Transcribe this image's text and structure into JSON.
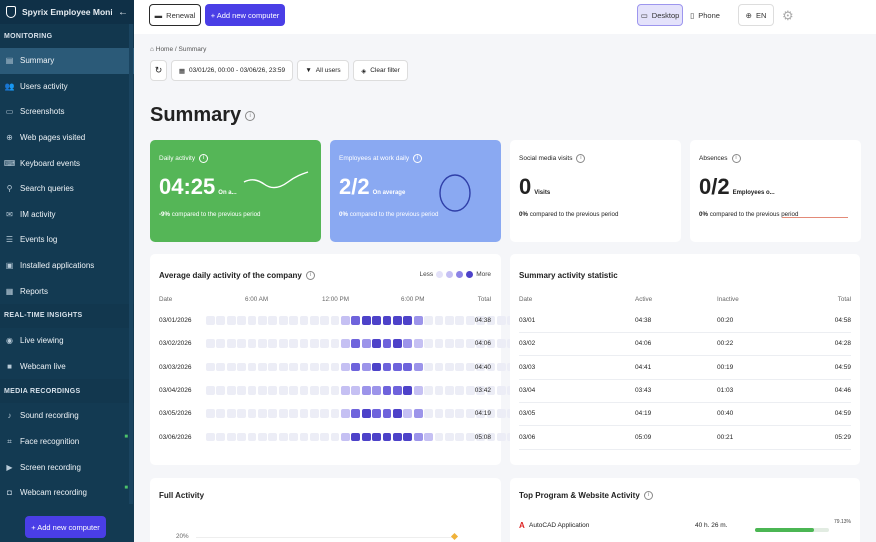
{
  "sidebar": {
    "app_title": "Spyrix Employee Monitori...",
    "sections": [
      {
        "title": "MONITORING",
        "items": [
          {
            "label": "Summary",
            "icon": "summary-icon",
            "glyph": "▤",
            "active": true
          },
          {
            "label": "Users activity",
            "icon": "users-icon",
            "glyph": "👥"
          },
          {
            "label": "Screenshots",
            "icon": "monitor-icon",
            "glyph": "▭"
          },
          {
            "label": "Web pages visited",
            "icon": "globe-icon",
            "glyph": "⊕"
          },
          {
            "label": "Keyboard events",
            "icon": "keyboard-icon",
            "glyph": "⌨"
          },
          {
            "label": "Search queries",
            "icon": "search-icon",
            "glyph": "⚲"
          },
          {
            "label": "IM activity",
            "icon": "chat-icon",
            "glyph": "✉"
          },
          {
            "label": "Events log",
            "icon": "list-icon",
            "glyph": "☰"
          },
          {
            "label": "Installed applications",
            "icon": "apps-icon",
            "glyph": "▣"
          },
          {
            "label": "Reports",
            "icon": "reports-icon",
            "glyph": "▦"
          }
        ]
      },
      {
        "title": "REAL-TIME INSIGHTS",
        "items": [
          {
            "label": "Live viewing",
            "icon": "eye-icon",
            "glyph": "◉"
          },
          {
            "label": "Webcam live",
            "icon": "camera-icon",
            "glyph": "■"
          }
        ]
      },
      {
        "title": "MEDIA RECORDINGS",
        "items": [
          {
            "label": "Sound recording",
            "icon": "microphone-icon",
            "glyph": "♪"
          },
          {
            "label": "Face recognition",
            "icon": "face-scan-icon",
            "glyph": "⌗",
            "locked": true
          },
          {
            "label": "Screen recording",
            "icon": "screen-record-icon",
            "glyph": "▶"
          },
          {
            "label": "Webcam recording",
            "icon": "webcam-icon",
            "glyph": "◘",
            "locked": true
          }
        ]
      }
    ],
    "add_button": "+ Add new computer"
  },
  "topbar": {
    "renewal": "Renewal",
    "add_computer": "+ Add new computer",
    "desktop": "Desktop",
    "phone": "Phone",
    "language": "EN"
  },
  "breadcrumb": {
    "home": "Home",
    "current": "Summary"
  },
  "filters": {
    "date_range": "03/01/26, 00:00 - 03/06/26, 23:59",
    "users": "All users",
    "clear": "Clear filter"
  },
  "page_title": "Summary",
  "stats": {
    "daily_activity": {
      "label": "Daily activity",
      "value": "04:25",
      "unit": "On a...",
      "compare": "-9%",
      "compare_text": "compared to the previous period"
    },
    "employees_at_work": {
      "label": "Employees at work daily",
      "value": "2/2",
      "unit": "On average",
      "compare": "0%",
      "compare_text": "compared to the previous period"
    },
    "social_media": {
      "label": "Social media visits",
      "value": "0",
      "unit": "Visits",
      "compare": "0%",
      "compare_text": "compared to the previous period"
    },
    "absences": {
      "label": "Absences",
      "value": "0/2",
      "unit": "Employees o...",
      "compare": "0%",
      "compare_text": "compared to the previous period"
    }
  },
  "daily_activity_panel": {
    "title": "Average daily activity of the company",
    "legend_less": "Less",
    "legend_more": "More",
    "col_date": "Date",
    "col_6am": "6:00 AM",
    "col_12pm": "12:00 PM",
    "col_6pm": "6:00 PM",
    "col_total": "Total",
    "rows": [
      {
        "date": "03/01/2026",
        "total": "04:38",
        "levels": [
          0,
          0,
          0,
          0,
          0,
          0,
          0,
          0,
          0,
          0,
          0,
          0,
          0,
          1,
          3,
          4,
          4,
          4,
          4,
          4,
          2,
          0,
          0,
          0,
          0,
          0,
          0,
          0,
          0,
          0,
          0,
          0,
          0,
          0
        ]
      },
      {
        "date": "03/02/2026",
        "total": "04:06",
        "levels": [
          0,
          0,
          0,
          0,
          0,
          0,
          0,
          0,
          0,
          0,
          0,
          0,
          0,
          1,
          3,
          2,
          4,
          3,
          4,
          2,
          1,
          0,
          0,
          0,
          0,
          0,
          0,
          0,
          0,
          0,
          0,
          0,
          0,
          0
        ]
      },
      {
        "date": "03/03/2026",
        "total": "04:40",
        "levels": [
          0,
          0,
          0,
          0,
          0,
          0,
          0,
          0,
          0,
          0,
          0,
          0,
          0,
          1,
          3,
          2,
          4,
          3,
          3,
          3,
          2,
          0,
          0,
          0,
          0,
          0,
          0,
          0,
          0,
          0,
          0,
          0,
          0,
          0
        ]
      },
      {
        "date": "03/04/2026",
        "total": "03:42",
        "levels": [
          0,
          0,
          0,
          0,
          0,
          0,
          0,
          0,
          0,
          0,
          0,
          0,
          0,
          1,
          1,
          2,
          2,
          3,
          3,
          4,
          1,
          0,
          0,
          0,
          0,
          0,
          0,
          0,
          0,
          0,
          0,
          0,
          0,
          0
        ]
      },
      {
        "date": "03/05/2026",
        "total": "04:19",
        "levels": [
          0,
          0,
          0,
          0,
          0,
          0,
          0,
          0,
          0,
          0,
          0,
          0,
          0,
          1,
          3,
          4,
          3,
          3,
          4,
          1,
          2,
          0,
          0,
          0,
          0,
          0,
          0,
          0,
          0,
          0,
          0,
          0,
          0,
          0
        ]
      },
      {
        "date": "03/06/2026",
        "total": "05:08",
        "levels": [
          0,
          0,
          0,
          0,
          0,
          0,
          0,
          0,
          0,
          0,
          0,
          0,
          0,
          1,
          4,
          4,
          4,
          4,
          4,
          4,
          2,
          1,
          0,
          0,
          0,
          0,
          0,
          0,
          0,
          0,
          0,
          0,
          0,
          0
        ]
      }
    ]
  },
  "summary_stat": {
    "title": "Summary activity statistic",
    "col_date": "Date",
    "col_active": "Active",
    "col_inactive": "Inactive",
    "col_total": "Total",
    "rows": [
      {
        "date": "03/01",
        "active": "04:38",
        "inactive": "00:20",
        "total": "04:58"
      },
      {
        "date": "03/02",
        "active": "04:06",
        "inactive": "00:22",
        "total": "04:28"
      },
      {
        "date": "03/03",
        "active": "04:41",
        "inactive": "00:19",
        "total": "04:59"
      },
      {
        "date": "03/04",
        "active": "03:43",
        "inactive": "01:03",
        "total": "04:46"
      },
      {
        "date": "03/05",
        "active": "04:19",
        "inactive": "00:40",
        "total": "04:59"
      },
      {
        "date": "03/06",
        "active": "05:09",
        "inactive": "00:21",
        "total": "05:29"
      }
    ]
  },
  "full_activity": {
    "title": "Full Activity",
    "y_tick": "20%"
  },
  "top_programs": {
    "title": "Top Program & Website Activity",
    "items": [
      {
        "name": "AutoCAD Application",
        "time": "40 h. 26 m.",
        "percent": "79.13%",
        "fraction": 0.7913
      }
    ]
  },
  "colors": {
    "accent": "#4a3ee6",
    "sidebar": "#133a52",
    "green_card": "#55b657",
    "blue_card": "#8aa9f2"
  }
}
